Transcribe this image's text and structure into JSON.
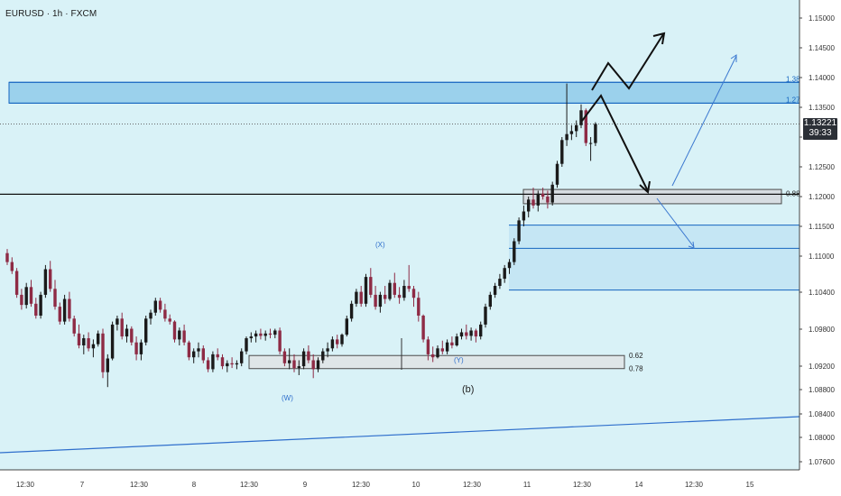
{
  "header": {
    "symbol": "EURUSD · 1h · FXCM"
  },
  "colors": {
    "background": "#d9f2f7",
    "bull": "#1a1a1a",
    "bear": "#8e2b45",
    "zone_blue": "#1565c0",
    "zone_grey": "#4a4a4a",
    "axis_text": "#333333"
  },
  "last_price": {
    "value": "1.13221",
    "countdown": "39:33"
  },
  "chart_data": {
    "type": "candlestick",
    "title": "",
    "ylim": [
      1.0728,
      1.1588
    ],
    "y_ticks": [
      "1.15000",
      "1.14500",
      "1.14000",
      "1.13500",
      "1.13000",
      "1.12500",
      "1.12000",
      "1.11500",
      "1.11000",
      "1.10400",
      "1.09800",
      "1.09200",
      "1.08800",
      "1.08400",
      "1.08000",
      "1.07600"
    ],
    "x_ticks": [
      "12:30",
      "7",
      "12:30",
      "8",
      "12:30",
      "9",
      "12:30",
      "10",
      "12:30",
      "11",
      "12:30",
      "14",
      "12:30",
      "15"
    ],
    "horizontal_line": 1.1204,
    "fib_levels": [
      {
        "label": "1.38",
        "price": 1.1392
      },
      {
        "label": "1.27",
        "price": 1.1357
      },
      {
        "label": "0.88",
        "price": 1.1205
      },
      {
        "label": "0.62",
        "price": 1.0933
      },
      {
        "label": "0.78",
        "price": 1.0911
      }
    ],
    "wave_labels": [
      "(X)",
      "(W)",
      "(Y)",
      "(b)"
    ],
    "ohlc": [
      [
        1.1105,
        1.1112,
        1.1085,
        1.109
      ],
      [
        1.109,
        1.1098,
        1.107,
        1.1075
      ],
      [
        1.1075,
        1.108,
        1.103,
        1.1035
      ],
      [
        1.1035,
        1.1045,
        1.101,
        1.1018
      ],
      [
        1.1018,
        1.1055,
        1.1012,
        1.1048
      ],
      [
        1.1048,
        1.106,
        1.1015,
        1.102
      ],
      [
        1.102,
        1.103,
        1.0995,
        1.1
      ],
      [
        1.1,
        1.104,
        1.0995,
        1.1035
      ],
      [
        1.1035,
        1.1085,
        1.103,
        1.1078
      ],
      [
        1.1078,
        1.1092,
        1.104,
        1.1045
      ],
      [
        1.1045,
        1.106,
        1.101,
        1.1015
      ],
      [
        1.1015,
        1.1022,
        1.0985,
        1.099
      ],
      [
        1.099,
        1.1035,
        1.0985,
        1.1028
      ],
      [
        1.1028,
        1.104,
        1.099,
        1.0995
      ],
      [
        1.0995,
        1.1,
        1.0965,
        1.097
      ],
      [
        1.097,
        1.0985,
        1.0945,
        1.095
      ],
      [
        1.095,
        1.0968,
        1.0935,
        1.0962
      ],
      [
        1.0962,
        1.0972,
        1.094,
        1.0945
      ],
      [
        1.0945,
        1.096,
        1.093,
        1.0952
      ],
      [
        1.0952,
        1.0975,
        1.0948,
        1.097
      ],
      [
        1.097,
        1.0978,
        1.0895,
        1.0905
      ],
      [
        1.0905,
        1.0935,
        1.088,
        1.0928
      ],
      [
        1.0928,
        1.099,
        1.0925,
        1.0985
      ],
      [
        1.0985,
        1.1,
        1.0975,
        1.0995
      ],
      [
        1.0995,
        1.1005,
        1.096,
        1.0965
      ],
      [
        1.0965,
        1.0985,
        1.0955,
        1.0978
      ],
      [
        1.0978,
        1.0982,
        1.095,
        1.0955
      ],
      [
        1.0955,
        1.0965,
        1.0925,
        1.0935
      ],
      [
        1.0935,
        1.096,
        1.0925,
        1.0955
      ],
      [
        1.0955,
        1.1,
        1.095,
        1.0995
      ],
      [
        1.0995,
        1.101,
        1.0985,
        1.1005
      ],
      [
        1.1005,
        1.103,
        1.1,
        1.1025
      ],
      [
        1.1025,
        1.103,
        1.1005,
        1.101
      ],
      [
        1.101,
        1.102,
        1.099,
        1.0995
      ],
      [
        1.0995,
        1.1002,
        1.0985,
        1.099
      ],
      [
        1.099,
        1.0992,
        1.0955,
        1.096
      ],
      [
        1.096,
        1.098,
        1.095,
        1.0975
      ],
      [
        1.0975,
        1.0985,
        1.095,
        1.0955
      ],
      [
        1.0955,
        1.0958,
        1.0925,
        1.093
      ],
      [
        1.093,
        1.0945,
        1.092,
        1.094
      ],
      [
        1.094,
        1.0955,
        1.093,
        1.0945
      ],
      [
        1.0945,
        1.095,
        1.092,
        1.0925
      ],
      [
        1.0925,
        1.093,
        1.0905,
        1.091
      ],
      [
        1.091,
        1.094,
        1.0905,
        1.0935
      ],
      [
        1.0935,
        1.0945,
        1.0925,
        1.093
      ],
      [
        1.093,
        1.0935,
        1.091,
        1.0915
      ],
      [
        1.0915,
        1.0925,
        1.0905,
        1.092
      ],
      [
        1.092,
        1.093,
        1.0912,
        1.0918
      ],
      [
        1.0918,
        1.0925,
        1.091,
        1.092
      ],
      [
        1.092,
        1.0945,
        1.0915,
        1.094
      ],
      [
        1.094,
        1.0965,
        1.0935,
        1.0962
      ],
      [
        1.0962,
        1.0972,
        1.0955,
        1.0965
      ],
      [
        1.0965,
        1.0975,
        1.0955,
        1.097
      ],
      [
        1.097,
        1.0978,
        1.096,
        1.0966
      ],
      [
        1.0966,
        1.0975,
        1.0958,
        1.097
      ],
      [
        1.097,
        1.0978,
        1.0962,
        1.0968
      ],
      [
        1.0968,
        1.0978,
        1.0962,
        1.0975
      ],
      [
        1.0975,
        1.098,
        1.0935,
        1.094
      ],
      [
        1.094,
        1.0945,
        1.0915,
        1.092
      ],
      [
        1.092,
        1.0945,
        1.091,
        1.0925
      ],
      [
        1.0925,
        1.0935,
        1.0905,
        1.0912
      ],
      [
        1.0912,
        1.0925,
        1.09,
        1.0915
      ],
      [
        1.0915,
        1.0945,
        1.091,
        1.094
      ],
      [
        1.094,
        1.095,
        1.092,
        1.0925
      ],
      [
        1.0925,
        1.0935,
        1.0895,
        1.091
      ],
      [
        1.091,
        1.093,
        1.0905,
        1.0925
      ],
      [
        1.0925,
        1.0945,
        1.092,
        1.094
      ],
      [
        1.094,
        1.0955,
        1.093,
        1.0945
      ],
      [
        1.0945,
        1.0965,
        1.094,
        1.096
      ],
      [
        1.096,
        1.0968,
        1.0945,
        1.0952
      ],
      [
        1.0952,
        1.097,
        1.0948,
        1.0968
      ],
      [
        1.0968,
        1.1,
        1.0965,
        1.0995
      ],
      [
        1.0995,
        1.1025,
        1.099,
        1.102
      ],
      [
        1.102,
        1.1045,
        1.1015,
        1.104
      ],
      [
        1.104,
        1.105,
        1.1015,
        1.102
      ],
      [
        1.102,
        1.107,
        1.1015,
        1.1065
      ],
      [
        1.1065,
        1.108,
        1.103,
        1.1035
      ],
      [
        1.1035,
        1.105,
        1.101,
        1.1015
      ],
      [
        1.1015,
        1.104,
        1.1005,
        1.1035
      ],
      [
        1.1035,
        1.105,
        1.102,
        1.1028
      ],
      [
        1.1028,
        1.106,
        1.1025,
        1.1055
      ],
      [
        1.1055,
        1.1072,
        1.103,
        1.1035
      ],
      [
        1.1035,
        1.1048,
        1.102,
        1.103
      ],
      [
        1.103,
        1.106,
        1.1025,
        1.105
      ],
      [
        1.105,
        1.1085,
        1.104,
        1.1045
      ],
      [
        1.1045,
        1.105,
        1.1015,
        1.103
      ],
      [
        1.103,
        1.104,
        1.099,
        1.1
      ],
      [
        1.1,
        1.1002,
        1.0955,
        1.096
      ],
      [
        1.096,
        1.0965,
        1.0925,
        1.0935
      ],
      [
        1.0935,
        1.0948,
        1.0922,
        1.093
      ],
      [
        1.093,
        1.095,
        1.0928,
        1.0945
      ],
      [
        1.0945,
        1.0958,
        1.0935,
        1.094
      ],
      [
        1.094,
        1.096,
        1.0935,
        1.0955
      ],
      [
        1.0955,
        1.0965,
        1.0945,
        1.095
      ],
      [
        1.095,
        1.097,
        1.0948,
        1.0965
      ],
      [
        1.0965,
        1.0978,
        1.096,
        1.0972
      ],
      [
        1.0972,
        1.0985,
        1.096,
        1.0966
      ],
      [
        1.0966,
        1.098,
        1.0958,
        1.0975
      ],
      [
        1.0975,
        1.0978,
        1.0955,
        1.0965
      ],
      [
        1.0965,
        1.099,
        1.096,
        1.0985
      ],
      [
        1.0985,
        1.102,
        1.098,
        1.1015
      ],
      [
        1.1015,
        1.104,
        1.101,
        1.1035
      ],
      [
        1.1035,
        1.1055,
        1.103,
        1.105
      ],
      [
        1.105,
        1.107,
        1.1045,
        1.1062
      ],
      [
        1.1062,
        1.1085,
        1.1055,
        1.108
      ],
      [
        1.108,
        1.1095,
        1.107,
        1.109
      ],
      [
        1.109,
        1.113,
        1.1085,
        1.1125
      ],
      [
        1.1125,
        1.1165,
        1.112,
        1.116
      ],
      [
        1.116,
        1.1185,
        1.115,
        1.1175
      ],
      [
        1.1175,
        1.12,
        1.1165,
        1.1195
      ],
      [
        1.1195,
        1.1215,
        1.118,
        1.1185
      ],
      [
        1.1185,
        1.121,
        1.1175,
        1.1205
      ],
      [
        1.1205,
        1.1215,
        1.1195,
        1.12
      ],
      [
        1.12,
        1.121,
        1.118,
        1.119
      ],
      [
        1.119,
        1.1225,
        1.1185,
        1.122
      ],
      [
        1.122,
        1.126,
        1.1215,
        1.1255
      ],
      [
        1.1255,
        1.13,
        1.125,
        1.1295
      ],
      [
        1.1295,
        1.139,
        1.1285,
        1.1305
      ],
      [
        1.1305,
        1.132,
        1.1295,
        1.131
      ],
      [
        1.131,
        1.1328,
        1.13,
        1.132
      ],
      [
        1.132,
        1.1355,
        1.1315,
        1.1345
      ],
      [
        1.1345,
        1.1348,
        1.1285,
        1.129
      ],
      [
        1.129,
        1.13,
        1.126,
        1.129
      ],
      [
        1.129,
        1.1325,
        1.1285,
        1.1322
      ]
    ],
    "ranges": {
      "index_range": [
        0,
        122
      ],
      "x_index_span": [
        -1.5,
        220.8
      ],
      "y_price_span": [
        1.0728,
        1.1588
      ]
    },
    "zones": {
      "top_blue_zone": [
        1.1357,
        1.1392
      ],
      "grey_zone_upper": [
        1.1188,
        1.1212
      ],
      "lower_blue_zone": [
        1.1043,
        1.1152
      ],
      "lower_blue_mid": 1.1113,
      "fib_zone": [
        1.0911,
        1.0933
      ]
    }
  }
}
